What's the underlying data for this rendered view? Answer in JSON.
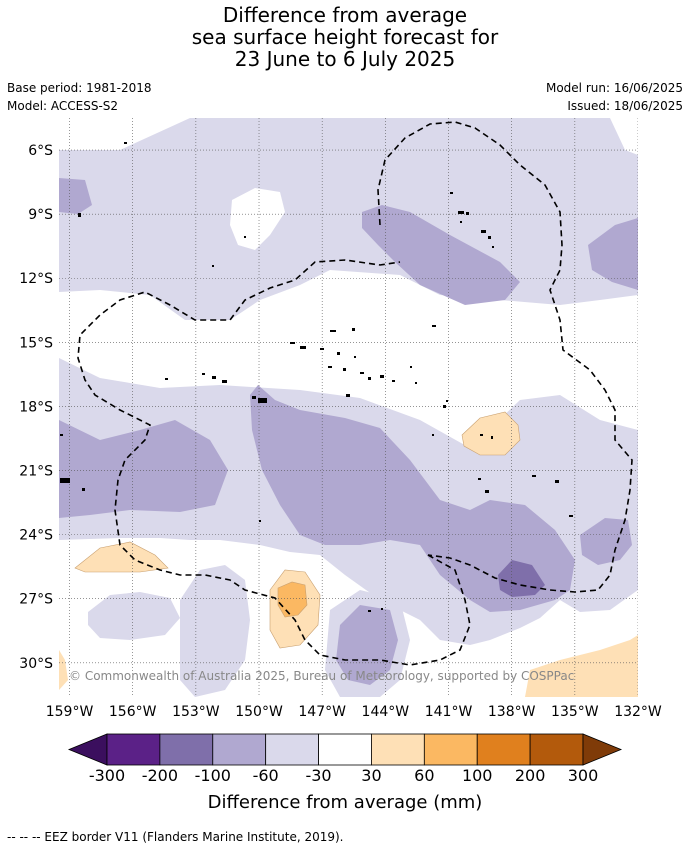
{
  "title_lines": [
    "Difference from average",
    "sea surface height forecast for",
    "23 June to 6 July 2025"
  ],
  "meta_left": {
    "base_period": "Base period: 1981-2018",
    "model": "Model: ACCESS-S2"
  },
  "meta_right": {
    "model_run": "Model run: 16/06/2025",
    "issued": "Issued: 18/06/2025"
  },
  "copyright": "© Commonwealth of Australia 2025, Bureau of Meteorology, supported by COSPPac",
  "map": {
    "lat_labels": [
      "6°S",
      "9°S",
      "12°S",
      "15°S",
      "18°S",
      "21°S",
      "24°S",
      "27°S",
      "30°S"
    ],
    "lon_labels": [
      "159°W",
      "156°W",
      "153°W",
      "150°W",
      "147°W",
      "144°W",
      "141°W",
      "138°W",
      "135°W",
      "132°W"
    ],
    "lat_range": [
      -31.6,
      -4.5
    ],
    "lon_range": [
      -159.5,
      -132.0
    ]
  },
  "legend": {
    "tick_labels": [
      "-300",
      "-200",
      "-100",
      "-60",
      "-30",
      "30",
      "60",
      "100",
      "200",
      "300"
    ],
    "colors": [
      "#3b0f5e",
      "#5b2187",
      "#7f6faa",
      "#b0a8d0",
      "#dad9eb",
      "#ffffff",
      "#fee0b6",
      "#fbb862",
      "#e0801e",
      "#b35a0c",
      "#7f3b08"
    ],
    "title": "Difference from average (mm)"
  },
  "footnote": "--  --  -- EEZ border V11 (Flanders Marine Institute, 2019)."
}
